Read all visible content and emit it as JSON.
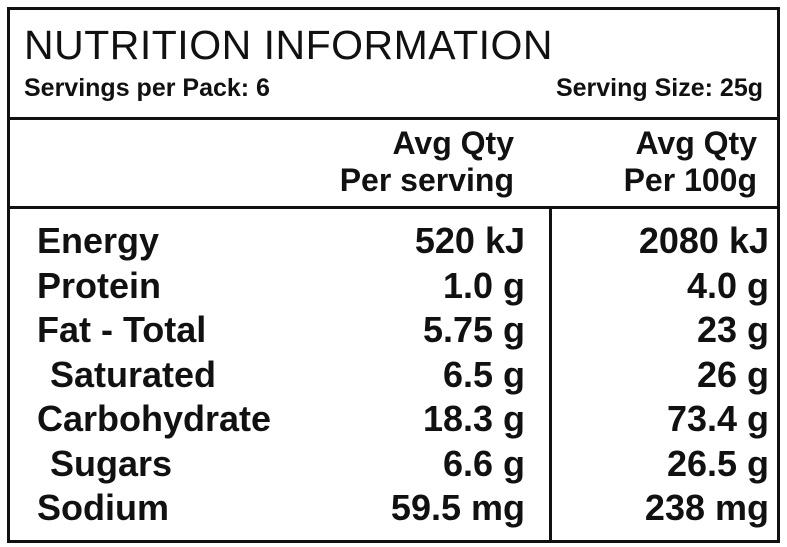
{
  "panel": {
    "title": "NUTRITION INFORMATION",
    "servings_per_pack": "Servings per Pack: 6",
    "serving_size": "Serving Size: 25g"
  },
  "columns": {
    "per_serving": {
      "line1": "Avg Qty",
      "line2": "Per serving"
    },
    "per_100g": {
      "line1": "Avg Qty",
      "line2": "Per 100g"
    }
  },
  "rows": [
    {
      "label": "Energy",
      "per_serving": "520 kJ",
      "per_100g": "2080 kJ"
    },
    {
      "label": "Protein",
      "per_serving": "1.0 g",
      "per_100g": "4.0 g"
    },
    {
      "label": "Fat - Total",
      "per_serving": "5.75 g",
      "per_100g": "23 g"
    },
    {
      "label": "Saturated",
      "per_serving": "6.5 g",
      "per_100g": "26 g"
    },
    {
      "label": "Carbohydrate",
      "per_serving": "18.3 g",
      "per_100g": "73.4 g"
    },
    {
      "label": "Sugars",
      "per_serving": "6.6 g",
      "per_100g": "26.5 g"
    },
    {
      "label": "Sodium",
      "per_serving": "59.5 mg",
      "per_100g": "238 mg"
    }
  ]
}
